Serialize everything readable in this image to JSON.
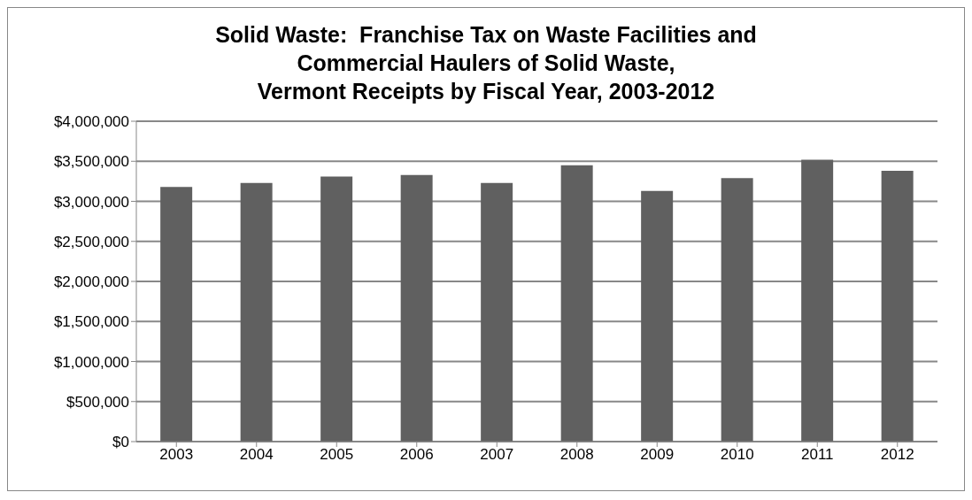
{
  "chart_data": {
    "type": "bar",
    "title": "Solid Waste:  Franchise Tax on Waste Facilities and\nCommercial Haulers of Solid Waste,\nVermont Receipts by Fiscal Year, 2003-2012",
    "categories": [
      "2003",
      "2004",
      "2005",
      "2006",
      "2007",
      "2008",
      "2009",
      "2010",
      "2011",
      "2012"
    ],
    "values": [
      3180000,
      3230000,
      3310000,
      3330000,
      3230000,
      3450000,
      3130000,
      3290000,
      3520000,
      3380000
    ],
    "color": "#606060",
    "ylim": [
      0,
      4000000
    ],
    "yticks": [
      {
        "value": 0,
        "label": "$0"
      },
      {
        "value": 500000,
        "label": "$500,000"
      },
      {
        "value": 1000000,
        "label": "$1,000,000"
      },
      {
        "value": 1500000,
        "label": "$1,500,000"
      },
      {
        "value": 2000000,
        "label": "$2,000,000"
      },
      {
        "value": 2500000,
        "label": "$2,500,000"
      },
      {
        "value": 3000000,
        "label": "$3,000,000"
      },
      {
        "value": 3500000,
        "label": "$3,500,000"
      },
      {
        "value": 4000000,
        "label": "$4,000,000"
      }
    ],
    "grid": "y",
    "legend": false
  }
}
